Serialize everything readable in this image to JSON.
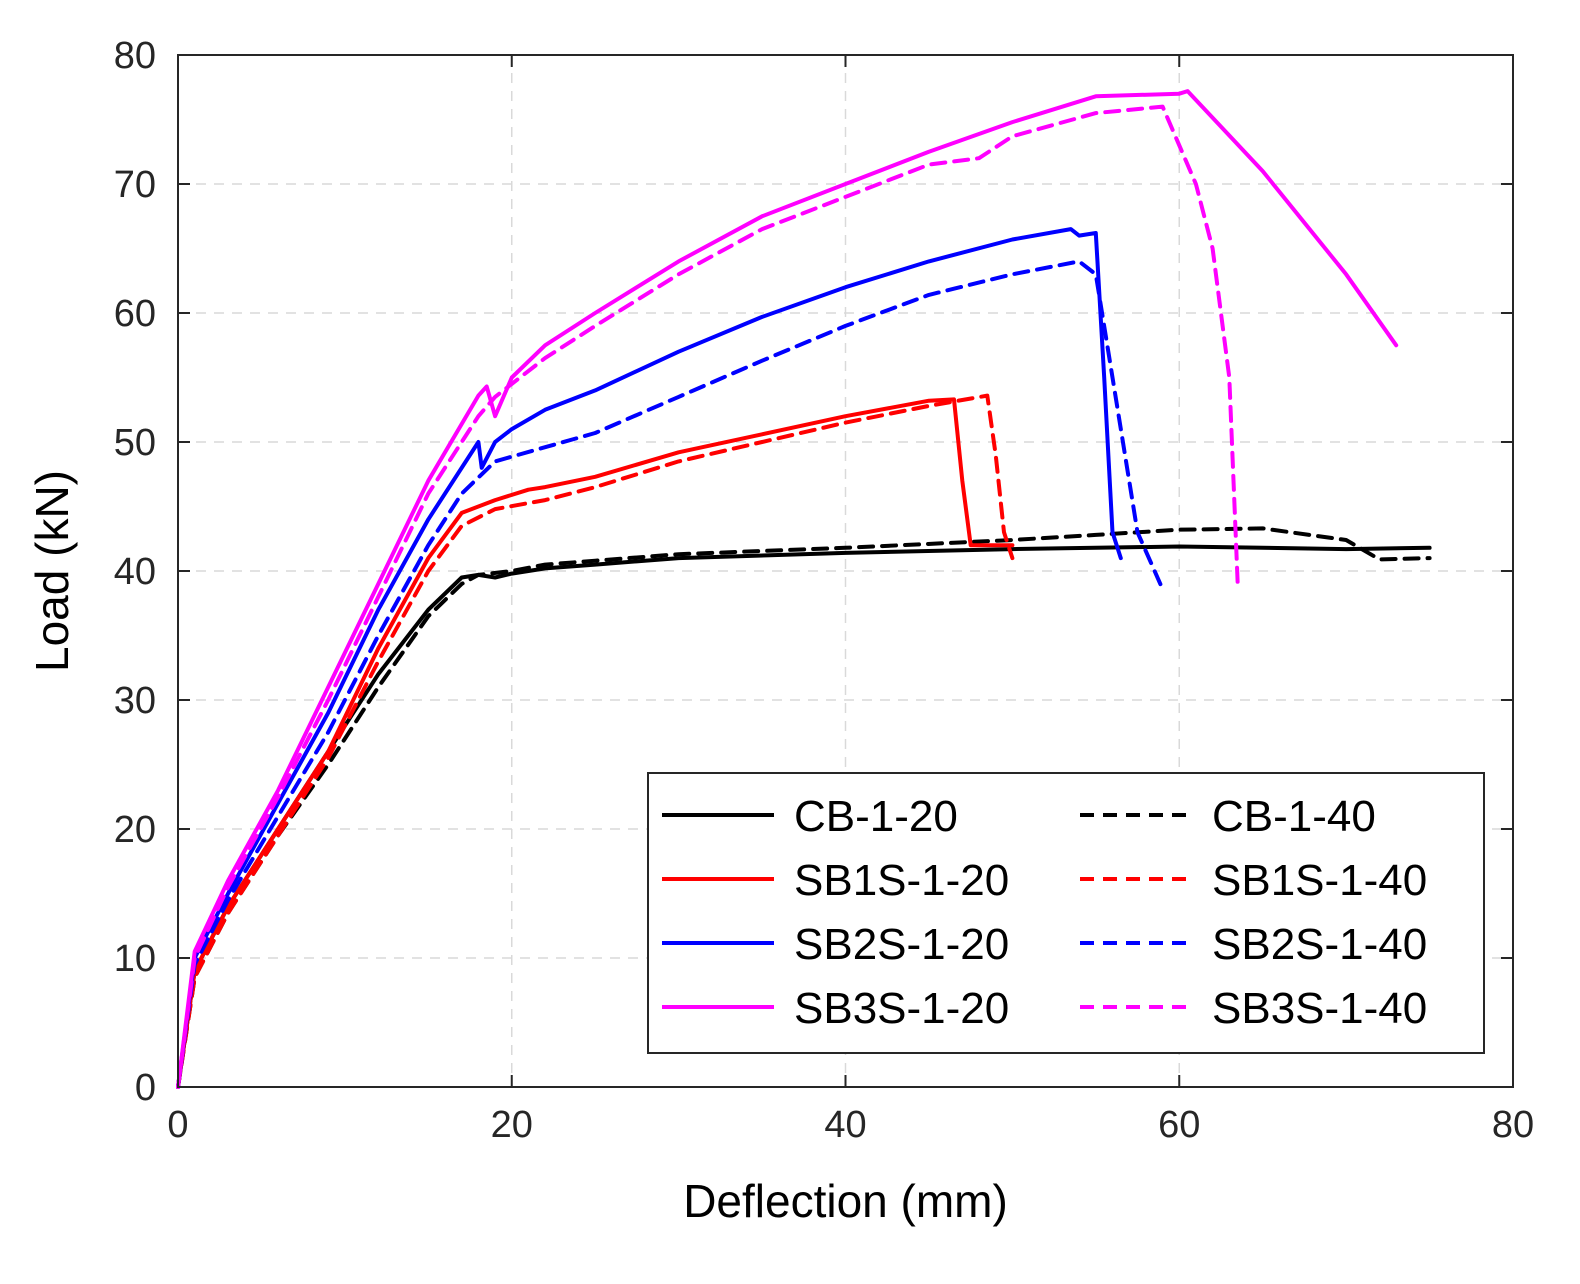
{
  "chart_data": {
    "type": "line",
    "title": "",
    "xlabel": "Deflection (mm)",
    "ylabel": "Load (kN)",
    "xlim": [
      0,
      80
    ],
    "ylim": [
      0,
      80
    ],
    "xticks": [
      0,
      20,
      40,
      60,
      80
    ],
    "yticks": [
      0,
      10,
      20,
      30,
      40,
      50,
      60,
      70,
      80
    ],
    "grid": true,
    "legend_position": "bottom-right",
    "series": [
      {
        "name": "CB-1-20",
        "color": "#000000",
        "dash": false,
        "x": [
          0,
          1,
          3,
          6,
          9,
          12,
          15,
          17,
          18,
          19,
          20,
          22,
          25,
          30,
          40,
          50,
          55,
          60,
          65,
          70,
          75
        ],
        "y": [
          0,
          9,
          14,
          20,
          26,
          32,
          37,
          39.5,
          39.7,
          39.5,
          39.8,
          40.2,
          40.5,
          41,
          41.4,
          41.7,
          41.8,
          41.9,
          41.8,
          41.7,
          41.8
        ]
      },
      {
        "name": "CB-1-40",
        "color": "#000000",
        "dash": true,
        "x": [
          0,
          1,
          3,
          6,
          9,
          12,
          15,
          17,
          18,
          20,
          22,
          25,
          30,
          40,
          50,
          55,
          60,
          65,
          70,
          72,
          75
        ],
        "y": [
          0,
          8.5,
          13.5,
          19.5,
          25,
          31,
          36.5,
          39,
          39.7,
          40,
          40.5,
          40.8,
          41.3,
          41.8,
          42.4,
          42.8,
          43.2,
          43.3,
          42.4,
          40.9,
          41
        ]
      },
      {
        "name": "SB1S-1-20",
        "color": "#ff0000",
        "dash": false,
        "x": [
          0,
          1,
          3,
          6,
          9,
          12,
          15,
          17,
          19,
          21,
          22,
          25,
          30,
          35,
          40,
          45,
          46.5,
          47,
          47.5,
          49,
          50
        ],
        "y": [
          0,
          9,
          14,
          20,
          26,
          34,
          41,
          44.5,
          45.5,
          46.3,
          46.5,
          47.3,
          49.2,
          50.6,
          52,
          53.2,
          53.3,
          47,
          42,
          42,
          42
        ]
      },
      {
        "name": "SB1S-1-40",
        "color": "#ff0000",
        "dash": true,
        "x": [
          0,
          1,
          3,
          6,
          9,
          12,
          15,
          17,
          19,
          22,
          25,
          30,
          35,
          40,
          45,
          48.5,
          49,
          49.5,
          50
        ],
        "y": [
          0,
          8.5,
          13.5,
          19.5,
          25.5,
          33,
          40,
          43.5,
          44.8,
          45.5,
          46.5,
          48.5,
          50,
          51.5,
          52.8,
          53.6,
          49,
          43,
          41
        ]
      },
      {
        "name": "SB2S-1-20",
        "color": "#0000ff",
        "dash": false,
        "x": [
          0,
          1,
          3,
          6,
          9,
          12,
          15,
          18,
          18.2,
          19,
          20,
          22,
          25,
          30,
          35,
          40,
          45,
          50,
          53.5,
          54,
          55,
          55.5,
          56,
          56.5
        ],
        "y": [
          0,
          10,
          15,
          22,
          29,
          37,
          44,
          50,
          48,
          50,
          51,
          52.5,
          54,
          57,
          59.7,
          62,
          64,
          65.7,
          66.5,
          66,
          66.2,
          55,
          43,
          41
        ]
      },
      {
        "name": "SB2S-1-40",
        "color": "#0000ff",
        "dash": true,
        "x": [
          0,
          1,
          3,
          6,
          9,
          12,
          15,
          17,
          19,
          22,
          25,
          30,
          35,
          40,
          45,
          50,
          54,
          55,
          56,
          57.5,
          59
        ],
        "y": [
          0,
          9.5,
          14.5,
          21,
          27.5,
          35,
          42,
          46,
          48.5,
          49.6,
          50.7,
          53.5,
          56.3,
          59,
          61.4,
          63,
          64,
          63,
          55,
          43,
          38.6
        ]
      },
      {
        "name": "SB3S-1-20",
        "color": "#ff00ff",
        "dash": false,
        "x": [
          0,
          1,
          3,
          6,
          9,
          12,
          15,
          18,
          18.5,
          19,
          20,
          22,
          25,
          30,
          35,
          40,
          45,
          50,
          55,
          60,
          60.5,
          65,
          70,
          73
        ],
        "y": [
          0,
          10.5,
          16,
          23,
          31,
          39,
          47,
          53.6,
          54.3,
          52,
          55,
          57.5,
          60,
          64,
          67.5,
          70,
          72.5,
          74.8,
          76.8,
          77,
          77.2,
          71,
          63,
          57.5
        ]
      },
      {
        "name": "SB3S-1-40",
        "color": "#ff00ff",
        "dash": true,
        "x": [
          0,
          1,
          3,
          6,
          9,
          12,
          15,
          18,
          19,
          20,
          22,
          25,
          30,
          35,
          40,
          45,
          48,
          50,
          55,
          59,
          61,
          62,
          63,
          63.5
        ],
        "y": [
          0,
          10,
          15.5,
          22.5,
          30,
          38,
          46,
          52,
          53.5,
          54.5,
          56.5,
          59,
          63,
          66.5,
          69,
          71.5,
          72,
          73.7,
          75.5,
          76,
          70,
          65,
          55,
          39
        ]
      }
    ]
  }
}
